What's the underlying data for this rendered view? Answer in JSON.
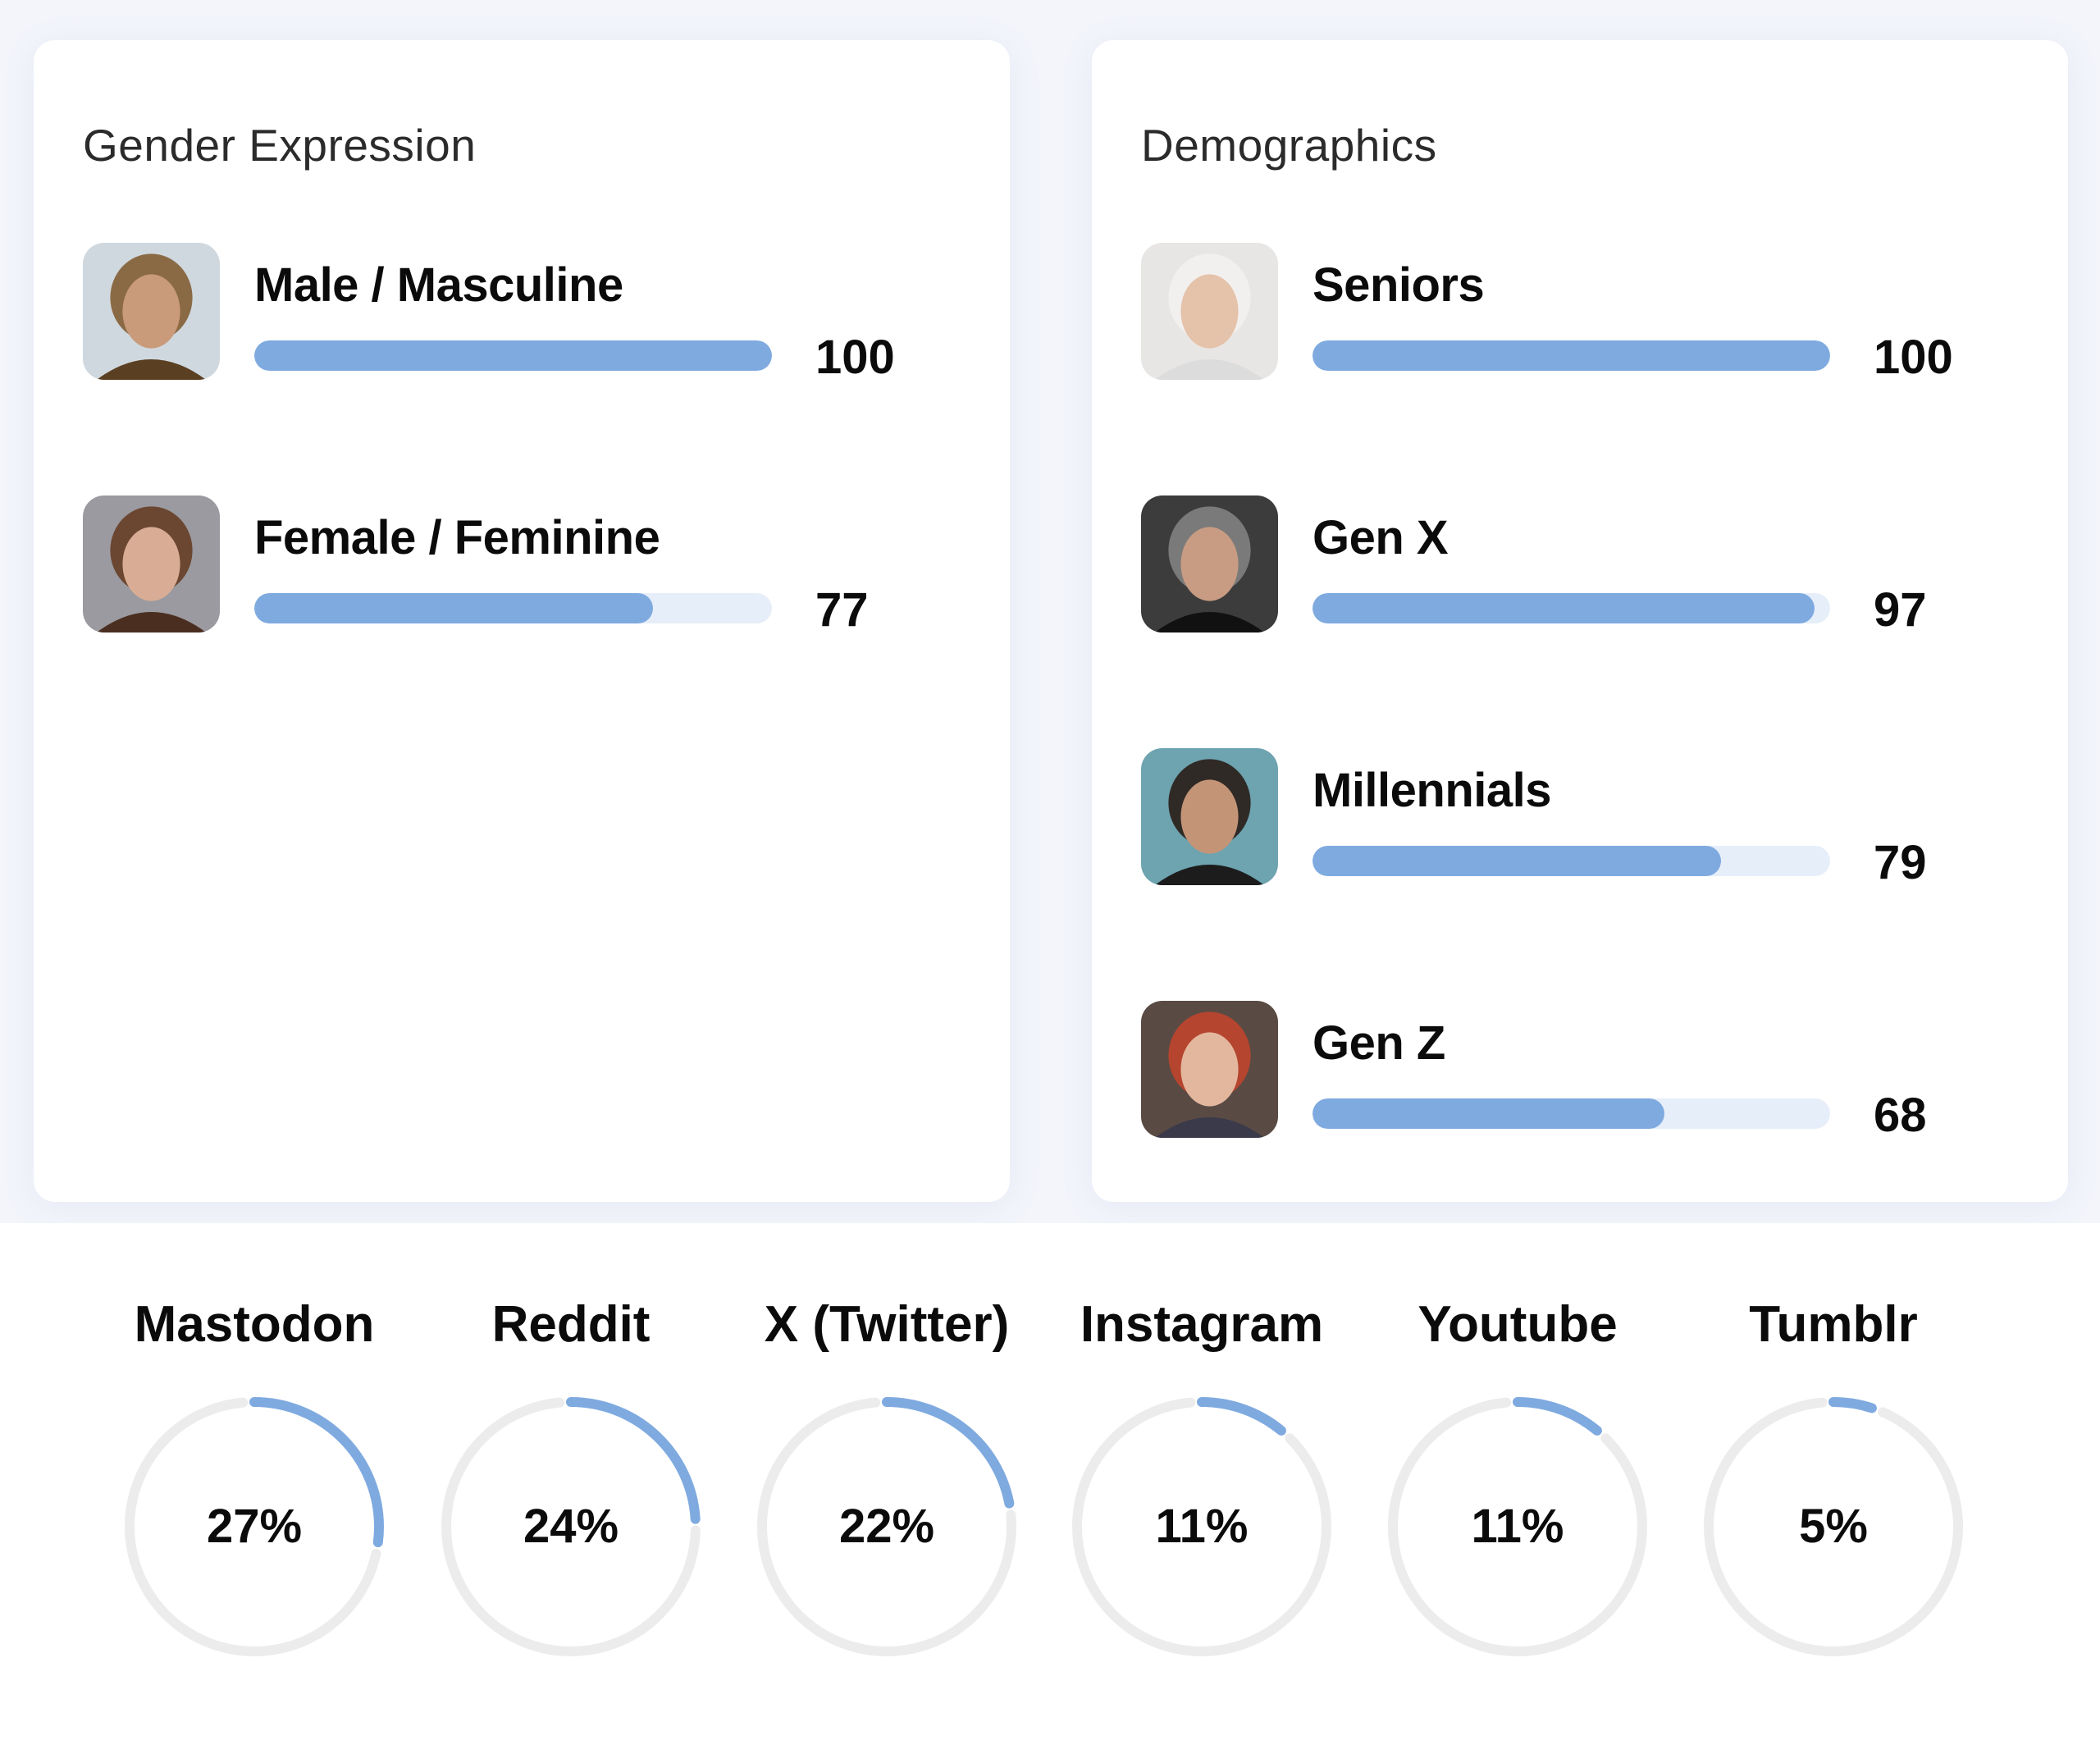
{
  "gender": {
    "title": "Gender Expression",
    "items": [
      {
        "label": "Male / Masculine",
        "value": "100",
        "percent": 100,
        "icon": "male-portrait-photo"
      },
      {
        "label": "Female / Feminine",
        "value": "77",
        "percent": 77,
        "icon": "female-portrait-photo"
      }
    ]
  },
  "demographics": {
    "title": "Demographics",
    "items": [
      {
        "label": "Seniors",
        "value": "100",
        "percent": 100,
        "icon": "senior-portrait-photo"
      },
      {
        "label": "Gen X",
        "value": "97",
        "percent": 97,
        "icon": "genx-portrait-photo"
      },
      {
        "label": "Millennials",
        "value": "79",
        "percent": 79,
        "icon": "millennial-portrait-photo"
      },
      {
        "label": "Gen Z",
        "value": "68",
        "percent": 68,
        "icon": "genz-portrait-photo"
      }
    ]
  },
  "platforms": [
    {
      "name": "Mastodon",
      "pct": "27%",
      "value": 27
    },
    {
      "name": "Reddit",
      "pct": "24%",
      "value": 24
    },
    {
      "name": "X (Twitter)",
      "pct": "22%",
      "value": 22
    },
    {
      "name": "Instagram",
      "pct": "11%",
      "value": 11
    },
    {
      "name": "Youtube",
      "pct": "11%",
      "value": 11
    },
    {
      "name": "Tumblr",
      "pct": "5%",
      "value": 5
    }
  ],
  "colors": {
    "accent": "#7faae0",
    "bar_track": "#e6eef9",
    "ring_track": "#ececec"
  }
}
